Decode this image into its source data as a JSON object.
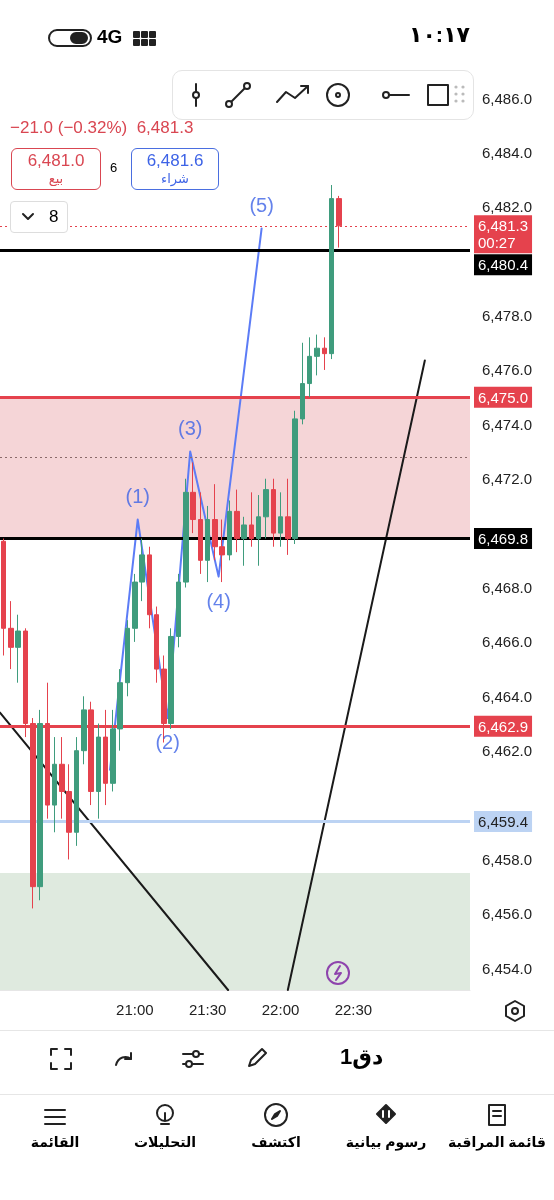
{
  "chart_data": {
    "type": "candlestick",
    "subtitle": "−21.0 (−0.32%)  6,481.3",
    "x": [
      20.1,
      20.15,
      20.2,
      20.25,
      20.3,
      20.35,
      20.4,
      20.45,
      20.5,
      20.55,
      20.6,
      20.65,
      20.7,
      20.75,
      20.8,
      20.85,
      20.9,
      20.95,
      21.0,
      21.05,
      21.1,
      21.15,
      21.2,
      21.25,
      21.3,
      21.35,
      21.4,
      21.45,
      21.5,
      21.55,
      21.6,
      21.65,
      21.7,
      21.75,
      21.8,
      21.85,
      21.9,
      21.95,
      22.0,
      22.05,
      22.1,
      22.15,
      22.2,
      22.25,
      22.3,
      22.35,
      22.4
    ],
    "ohlc": [
      [
        6469.7,
        6469.8,
        6465.5,
        6466.5
      ],
      [
        6466.5,
        6467.5,
        6465,
        6465.8
      ],
      [
        6465.8,
        6467,
        6464.5,
        6466.4
      ],
      [
        6466.4,
        6466.5,
        6462.5,
        6463
      ],
      [
        6463,
        6463.2,
        6456.2,
        6457
      ],
      [
        6457,
        6463.5,
        6456.5,
        6463
      ],
      [
        6463,
        6464.5,
        6459.5,
        6460
      ],
      [
        6460,
        6462.5,
        6459,
        6461.5
      ],
      [
        6461.5,
        6462.5,
        6459.5,
        6460.5
      ],
      [
        6460.5,
        6461.5,
        6458,
        6459
      ],
      [
        6459,
        6462.5,
        6458.5,
        6462
      ],
      [
        6462,
        6464,
        6461.5,
        6463.5
      ],
      [
        6463.5,
        6463.8,
        6460,
        6460.5
      ],
      [
        6460.5,
        6463,
        6459.5,
        6462.5
      ],
      [
        6462.5,
        6463.5,
        6460,
        6460.8
      ],
      [
        6460.8,
        6463.5,
        6460.5,
        6462.8
      ],
      [
        6462.8,
        6465,
        6462,
        6464.5
      ],
      [
        6464.5,
        6466.8,
        6464,
        6466.5
      ],
      [
        6466.5,
        6468.5,
        6466,
        6468.2
      ],
      [
        6468.2,
        6469.8,
        6467.5,
        6469.2
      ],
      [
        6469.2,
        6469.5,
        6466.5,
        6467
      ],
      [
        6467,
        6467.3,
        6464.5,
        6465
      ],
      [
        6465,
        6465.5,
        6462.3,
        6463
      ],
      [
        6463,
        6466.5,
        6462.8,
        6466.2
      ],
      [
        6466.2,
        6468.5,
        6465.8,
        6468.2
      ],
      [
        6468.2,
        6472,
        6468,
        6471.5
      ],
      [
        6471.5,
        6472.6,
        6470,
        6470.5
      ],
      [
        6470.5,
        6471.5,
        6468.5,
        6469
      ],
      [
        6469,
        6471,
        6468.2,
        6470.5
      ],
      [
        6470.5,
        6471.8,
        6469,
        6469.5
      ],
      [
        6469.5,
        6470.5,
        6468.2,
        6469.2
      ],
      [
        6469.2,
        6471.2,
        6469,
        6470.8
      ],
      [
        6470.8,
        6471.6,
        6469.3,
        6469.8
      ],
      [
        6469.8,
        6470.6,
        6468.8,
        6470.3
      ],
      [
        6470.3,
        6471.5,
        6469.5,
        6469.8
      ],
      [
        6469.8,
        6471.4,
        6468.8,
        6470.6
      ],
      [
        6470.6,
        6472,
        6469.8,
        6471.6
      ],
      [
        6471.6,
        6472,
        6469.5,
        6470
      ],
      [
        6470,
        6471.5,
        6469.5,
        6470.6
      ],
      [
        6470.6,
        6472,
        6469.2,
        6469.8
      ],
      [
        6469.8,
        6474.5,
        6469.6,
        6474.2
      ],
      [
        6474.2,
        6477,
        6474,
        6475.5
      ],
      [
        6475.5,
        6477.2,
        6475,
        6476.5
      ],
      [
        6476.5,
        6477.3,
        6475.8,
        6476.8
      ],
      [
        6476.8,
        6477.2,
        6476,
        6476.6
      ],
      [
        6476.6,
        6482.8,
        6476.4,
        6482.3
      ],
      [
        6482.3,
        6482.4,
        6480.5,
        6481.3
      ]
    ],
    "colors": [
      "#e5424d",
      "#e5424d",
      "#3f9c7d",
      "#e5424d",
      "#e5424d",
      "#3f9c7d",
      "#e5424d",
      "#3f9c7d",
      "#e5424d",
      "#e5424d",
      "#3f9c7d",
      "#3f9c7d",
      "#e5424d",
      "#3f9c7d",
      "#e5424d",
      "#3f9c7d",
      "#3f9c7d",
      "#3f9c7d",
      "#3f9c7d",
      "#3f9c7d",
      "#e5424d",
      "#e5424d",
      "#e5424d",
      "#3f9c7d",
      "#3f9c7d",
      "#3f9c7d",
      "#e5424d",
      "#e5424d",
      "#3f9c7d",
      "#e5424d",
      "#e5424d",
      "#3f9c7d",
      "#e5424d",
      "#3f9c7d",
      "#e5424d",
      "#3f9c7d",
      "#3f9c7d",
      "#e5424d",
      "#3f9c7d",
      "#e5424d",
      "#3f9c7d",
      "#3f9c7d",
      "#3f9c7d",
      "#3f9c7d",
      "#e5424d",
      "#3f9c7d",
      "#e5424d"
    ],
    "series": [
      {
        "type": "line",
        "color": "#5c7cf6",
        "x": [
          20.83,
          21.02,
          21.225,
          21.38,
          21.575,
          21.87
        ],
        "values": [
          6461.3,
          6470.5,
          6463.2,
          6473.0,
          6468.4,
          6481.2
        ]
      },
      {
        "type": "line",
        "color": "#1a1a1a",
        "x": [
          20.075,
          21.64
        ],
        "values": [
          6463.4,
          6453.2
        ]
      },
      {
        "type": "line",
        "color": "#1a1a1a",
        "x": [
          22.05,
          22.99
        ],
        "values": [
          6453.2,
          6476.35
        ]
      }
    ],
    "xlim": [
      20.075,
      23.3
    ],
    "xticks": [
      {
        "value": 21,
        "label": "21:00"
      },
      {
        "value": 21.5,
        "label": "21:30"
      },
      {
        "value": 22,
        "label": "22:00"
      },
      {
        "value": 22.5,
        "label": "22:30"
      }
    ],
    "ylim": [
      6453.2,
      6486
    ],
    "yticks": [
      {
        "value": 6454,
        "label": "6,454.0"
      },
      {
        "value": 6456,
        "label": "6,456.0"
      },
      {
        "value": 6458,
        "label": "6,458.0"
      },
      {
        "value": 6462,
        "label": "6,462.0"
      },
      {
        "value": 6464,
        "label": "6,464.0"
      },
      {
        "value": 6466,
        "label": "6,466.0"
      },
      {
        "value": 6468,
        "label": "6,468.0"
      },
      {
        "value": 6472,
        "label": "6,472.0"
      },
      {
        "value": 6474,
        "label": "6,474.0"
      },
      {
        "value": 6476,
        "label": "6,476.0"
      },
      {
        "value": 6478,
        "label": "6,478.0"
      },
      {
        "value": 6482,
        "label": "6,482.0"
      },
      {
        "value": 6484,
        "label": "6,484.0"
      },
      {
        "value": 6486,
        "label": "6,486.0"
      }
    ],
    "marker": "none",
    "bands": [
      {
        "axis": "y",
        "from": 6469.8,
        "to": 6475.0,
        "color": "#f5d5d7"
      },
      {
        "axis": "y",
        "from": 6453.2,
        "to": 6457.5,
        "color": "#dfeadf"
      }
    ],
    "ref_lines": [
      {
        "axis": "y",
        "value": 6481.3,
        "label": "6,481.3\n00:27",
        "color": "#e5424d",
        "line_style": "dotted"
      },
      {
        "axis": "y",
        "value": 6480.4,
        "label": "6,480.4",
        "color": "#000000",
        "line_style": "solid"
      },
      {
        "axis": "y",
        "value": 6475.0,
        "label": "6,475.0",
        "color": "#e5424d",
        "line_style": "solid"
      },
      {
        "axis": "y",
        "value": 6472.8,
        "label": null,
        "color": "#8a6a6a",
        "line_style": "dotted"
      },
      {
        "axis": "y",
        "value": 6469.8,
        "label": "6,469.8",
        "color": "#000000",
        "line_style": "solid"
      },
      {
        "axis": "y",
        "value": 6462.9,
        "label": "6,462.9",
        "color": "#e5424d",
        "line_style": "solid"
      },
      {
        "axis": "y",
        "value": 6459.4,
        "label": "6,459.4",
        "color": "#bcd3f3",
        "line_style": "solid"
      }
    ],
    "annotations": [
      {
        "text": "(1)",
        "x": 21.02,
        "y": 6470.5
      },
      {
        "text": "(2)",
        "x": 21.225,
        "y": 6463.2
      },
      {
        "text": "(3)",
        "x": 21.38,
        "y": 6473.0
      },
      {
        "text": "(4)",
        "x": 21.575,
        "y": 6468.4
      },
      {
        "text": "(5)",
        "x": 21.87,
        "y": 6481.2
      },
      "١٠:١٧",
      "4G",
      "6,481.0",
      "بيع",
      "6",
      "6,481.6",
      "شراء",
      "8",
      "1دق",
      "القائمة",
      "التحليلات",
      "اكتشف",
      "رسوم بيانية",
      "قائمة المراقبة"
    ],
    "grid": false
  }
}
